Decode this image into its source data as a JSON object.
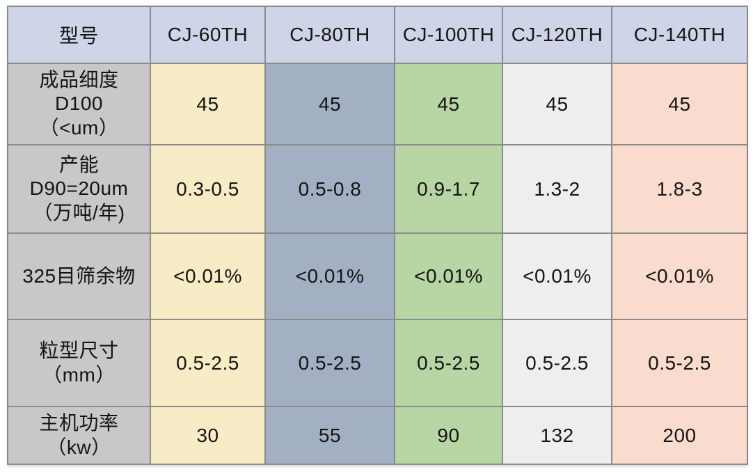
{
  "colors": {
    "header_bg": "#cfd4e8",
    "label_bg": "#c8c7ca",
    "column_bgs": [
      "#f8ecc6",
      "#a3b0c3",
      "#b8d5a4",
      "#edefee",
      "#fadcce"
    ],
    "grid_border": "#8b8b8b",
    "outer_border": "#6f6f6f",
    "text": "#141414",
    "page_bg": "#ffffff"
  },
  "chart_data": {
    "type": "table",
    "header": {
      "label": "型号",
      "models": [
        "CJ-60TH",
        "CJ-80TH",
        "CJ-100TH",
        "CJ-120TH",
        "CJ-140TH"
      ]
    },
    "rows": [
      {
        "label": "成品细度\nD100\n（<um）",
        "values": [
          "45",
          "45",
          "45",
          "45",
          "45"
        ]
      },
      {
        "label": "产能\nD90=20um\n（万吨/年)",
        "values": [
          "0.3-0.5",
          "0.5-0.8",
          "0.9-1.7",
          "1.3-2",
          "1.8-3"
        ]
      },
      {
        "label": "325目筛余物",
        "values": [
          "<0.01%",
          "<0.01%",
          "<0.01%",
          "<0.01%",
          "<0.01%"
        ]
      },
      {
        "label": "粒型尺寸\n（mm）",
        "values": [
          "0.5-2.5",
          "0.5-2.5",
          "0.5-2.5",
          "0.5-2.5",
          "0.5-2.5"
        ]
      },
      {
        "label": "主机功率\n（kw）",
        "values": [
          "30",
          "55",
          "90",
          "132",
          "200"
        ]
      }
    ]
  }
}
